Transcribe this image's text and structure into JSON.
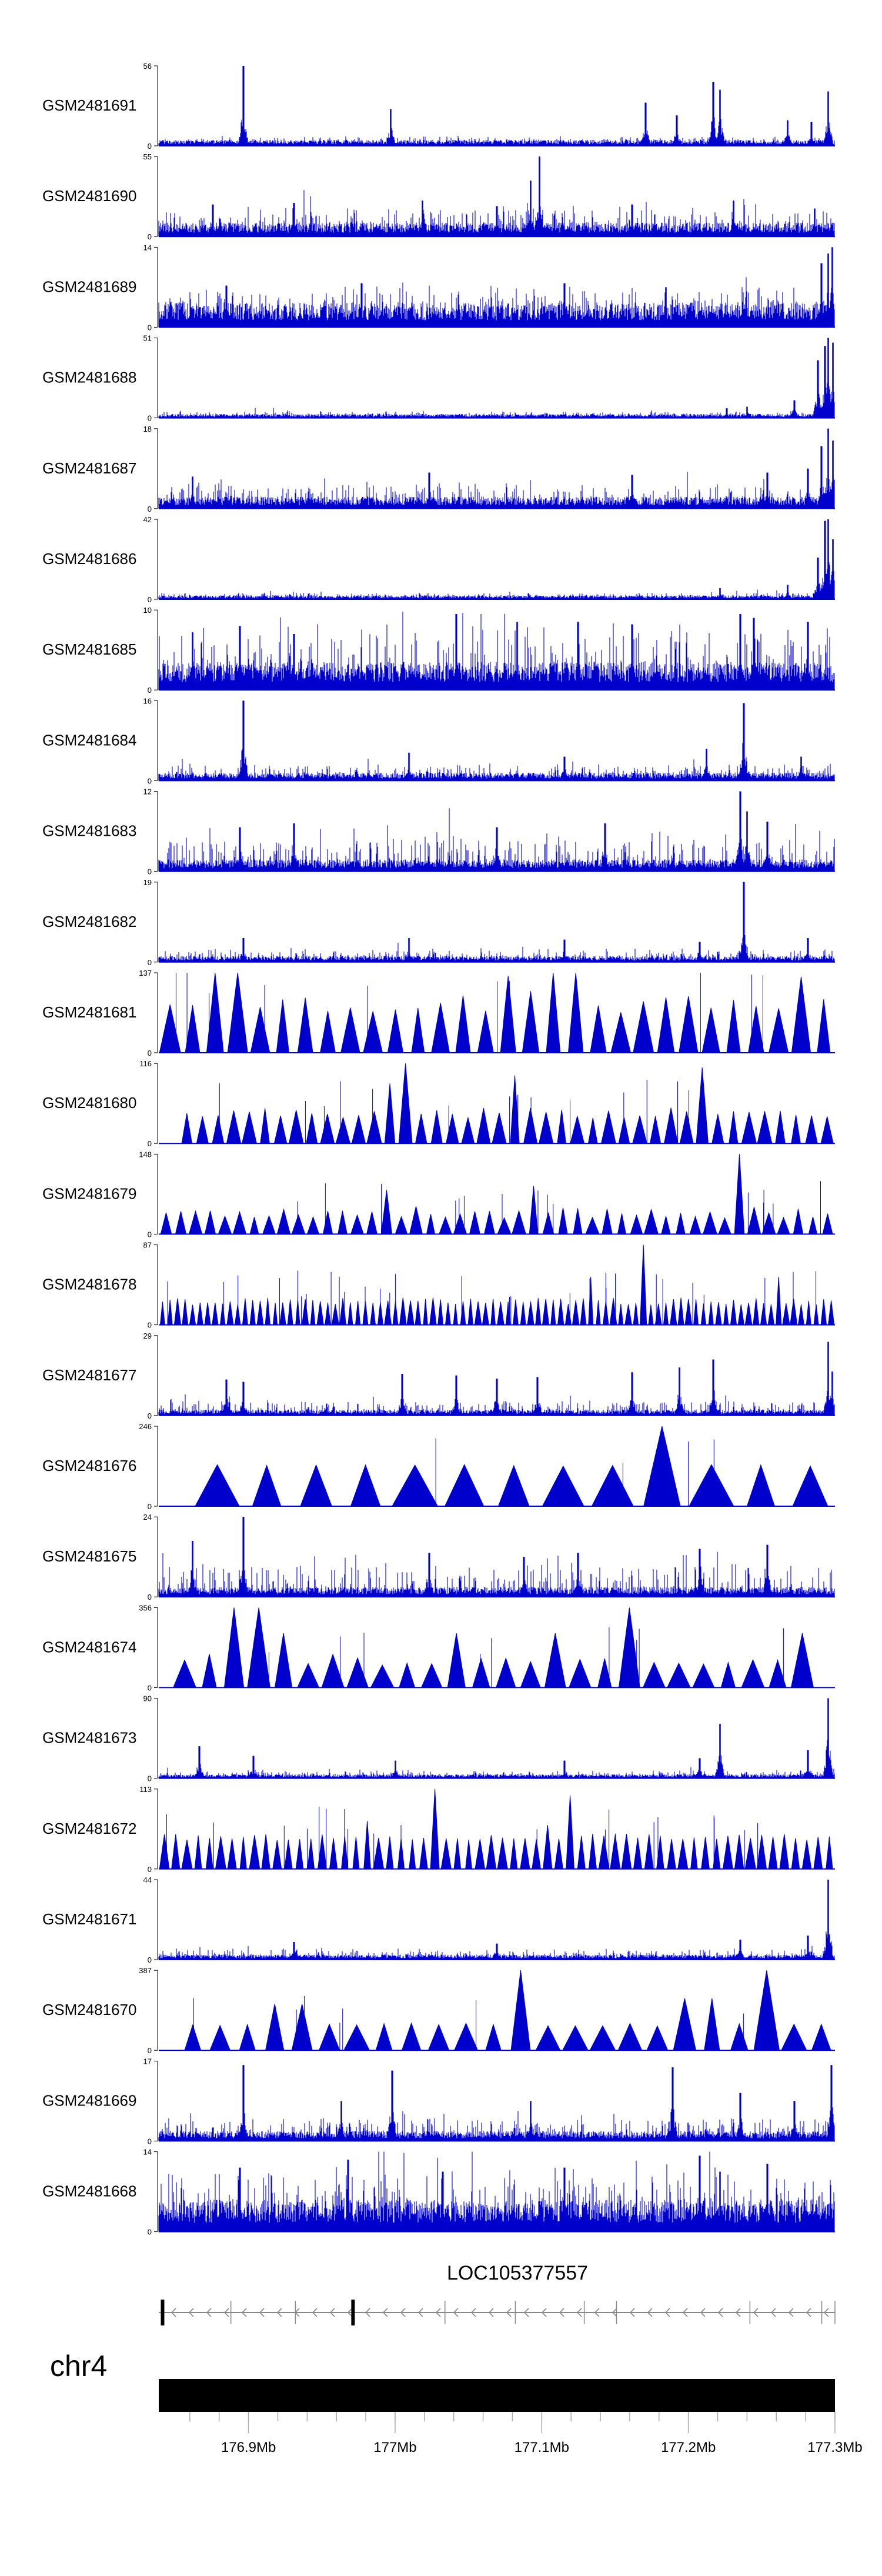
{
  "chart_data": {
    "type": "area",
    "colors": {
      "signal": "#0000cc",
      "axis": "#000000",
      "ideogram": "#000000",
      "gene": "#000000"
    },
    "tracks": [
      {
        "name": "GSM2481691",
        "ymax": 56,
        "style": "dense",
        "base": 0.06,
        "noise": 0.05,
        "peaks": [
          [
            0.125,
            1.0
          ],
          [
            0.343,
            0.46
          ],
          [
            0.72,
            0.54
          ],
          [
            0.766,
            0.38
          ],
          [
            0.82,
            0.8
          ],
          [
            0.83,
            0.7
          ],
          [
            0.93,
            0.32
          ],
          [
            0.965,
            0.3
          ],
          [
            0.99,
            0.68
          ]
        ]
      },
      {
        "name": "GSM2481690",
        "ymax": 55,
        "style": "dense",
        "base": 0.14,
        "noise": 0.2,
        "peaks": [
          [
            0.08,
            0.4
          ],
          [
            0.2,
            0.42
          ],
          [
            0.39,
            0.45
          ],
          [
            0.5,
            0.38
          ],
          [
            0.55,
            0.7
          ],
          [
            0.563,
            1.0
          ],
          [
            0.7,
            0.4
          ],
          [
            0.85,
            0.45
          ],
          [
            0.97,
            0.35
          ]
        ]
      },
      {
        "name": "GSM2481689",
        "ymax": 14,
        "style": "dense",
        "base": 0.25,
        "noise": 0.25,
        "peaks": [
          [
            0.1,
            0.52
          ],
          [
            0.3,
            0.55
          ],
          [
            0.6,
            0.55
          ],
          [
            0.75,
            0.5
          ],
          [
            0.98,
            0.8
          ],
          [
            0.99,
            0.92
          ],
          [
            0.996,
            1.0
          ]
        ]
      },
      {
        "name": "GSM2481688",
        "ymax": 51,
        "style": "dense",
        "base": 0.04,
        "noise": 0.04,
        "peaks": [
          [
            0.84,
            0.12
          ],
          [
            0.87,
            0.14
          ],
          [
            0.94,
            0.22
          ],
          [
            0.975,
            0.72
          ],
          [
            0.985,
            0.9
          ],
          [
            0.99,
            1.0
          ],
          [
            0.997,
            0.94
          ]
        ]
      },
      {
        "name": "GSM2481687",
        "ymax": 18,
        "style": "dense",
        "base": 0.12,
        "noise": 0.18,
        "peaks": [
          [
            0.05,
            0.4
          ],
          [
            0.4,
            0.45
          ],
          [
            0.7,
            0.42
          ],
          [
            0.9,
            0.45
          ],
          [
            0.96,
            0.5
          ],
          [
            0.98,
            0.78
          ],
          [
            0.99,
            1.0
          ],
          [
            0.997,
            0.85
          ]
        ]
      },
      {
        "name": "GSM2481686",
        "ymax": 42,
        "style": "dense",
        "base": 0.04,
        "noise": 0.04,
        "peaks": [
          [
            0.83,
            0.14
          ],
          [
            0.93,
            0.18
          ],
          [
            0.975,
            0.52
          ],
          [
            0.985,
            0.98
          ],
          [
            0.99,
            1.0
          ],
          [
            0.997,
            0.75
          ]
        ]
      },
      {
        "name": "GSM2481685",
        "ymax": 10,
        "style": "dense",
        "base": 0.28,
        "noise": 0.5,
        "peaks": [
          [
            0.05,
            0.72
          ],
          [
            0.12,
            0.8
          ],
          [
            0.2,
            0.7
          ],
          [
            0.44,
            0.95
          ],
          [
            0.53,
            0.85
          ],
          [
            0.62,
            0.85
          ],
          [
            0.7,
            0.82
          ],
          [
            0.86,
            0.95
          ],
          [
            0.88,
            0.9
          ],
          [
            0.96,
            0.85
          ]
        ]
      },
      {
        "name": "GSM2481684",
        "ymax": 16,
        "style": "dense",
        "base": 0.08,
        "noise": 0.12,
        "peaks": [
          [
            0.125,
            1.0
          ],
          [
            0.37,
            0.35
          ],
          [
            0.6,
            0.3
          ],
          [
            0.81,
            0.4
          ],
          [
            0.865,
            0.97
          ],
          [
            0.95,
            0.3
          ]
        ]
      },
      {
        "name": "GSM2481683",
        "ymax": 12,
        "style": "dense",
        "base": 0.12,
        "noise": 0.3,
        "peaks": [
          [
            0.12,
            0.55
          ],
          [
            0.2,
            0.6
          ],
          [
            0.5,
            0.55
          ],
          [
            0.66,
            0.6
          ],
          [
            0.86,
            1.0
          ],
          [
            0.87,
            0.75
          ],
          [
            0.9,
            0.62
          ]
        ]
      },
      {
        "name": "GSM2481682",
        "ymax": 19,
        "style": "dense",
        "base": 0.06,
        "noise": 0.1,
        "peaks": [
          [
            0.125,
            0.3
          ],
          [
            0.37,
            0.3
          ],
          [
            0.6,
            0.28
          ],
          [
            0.865,
            1.0
          ],
          [
            0.8,
            0.25
          ],
          [
            0.96,
            0.3
          ]
        ]
      },
      {
        "name": "GSM2481681",
        "ymax": 137,
        "style": "triangles",
        "start": 0.0,
        "end": 1.0,
        "n": 30,
        "seed": 11,
        "minh": 0.5,
        "maxh": 0.72,
        "peaks": [
          [
            0.1,
            1.0
          ],
          [
            0.52,
            0.96
          ],
          [
            0.56,
            0.77
          ],
          [
            0.6,
            1.0
          ],
          [
            0.63,
            0.93
          ],
          [
            0.96,
            0.95
          ]
        ]
      },
      {
        "name": "GSM2481680",
        "ymax": 116,
        "style": "triangles",
        "start": 0.03,
        "end": 1.0,
        "n": 42,
        "seed": 5,
        "minh": 0.32,
        "maxh": 0.45,
        "peaks": [
          [
            0.36,
            1.0
          ],
          [
            0.35,
            0.75
          ],
          [
            0.52,
            0.85
          ],
          [
            0.53,
            0.62
          ],
          [
            0.8,
            0.95
          ]
        ]
      },
      {
        "name": "GSM2481679",
        "ymax": 148,
        "style": "triangles",
        "start": 0.0,
        "end": 1.0,
        "n": 46,
        "seed": 7,
        "minh": 0.2,
        "maxh": 0.35,
        "peaks": [
          [
            0.33,
            0.55
          ],
          [
            0.55,
            0.6
          ],
          [
            0.86,
            1.0
          ]
        ]
      },
      {
        "name": "GSM2481678",
        "ymax": 87,
        "style": "triangles",
        "start": 0.0,
        "end": 1.0,
        "n": 90,
        "seed": 3,
        "minh": 0.25,
        "maxh": 0.34,
        "peaks": [
          [
            0.72,
            1.0
          ],
          [
            0.64,
            0.6
          ],
          [
            0.92,
            0.6
          ]
        ]
      },
      {
        "name": "GSM2481677",
        "ymax": 29,
        "style": "dense",
        "base": 0.06,
        "noise": 0.12,
        "peaks": [
          [
            0.1,
            0.45
          ],
          [
            0.125,
            0.42
          ],
          [
            0.36,
            0.52
          ],
          [
            0.44,
            0.5
          ],
          [
            0.5,
            0.46
          ],
          [
            0.56,
            0.48
          ],
          [
            0.7,
            0.54
          ],
          [
            0.77,
            0.6
          ],
          [
            0.82,
            0.7
          ],
          [
            0.99,
            0.92
          ],
          [
            0.996,
            0.55
          ]
        ]
      },
      {
        "name": "GSM2481676",
        "ymax": 246,
        "style": "triangles",
        "start": 0.05,
        "end": 1.0,
        "n": 13,
        "seed": 2,
        "minh": 0.5,
        "maxh": 0.52,
        "peaks": [
          [
            0.76,
            1.0
          ],
          [
            0.68,
            0.48
          ],
          [
            0.9,
            0.5
          ]
        ]
      },
      {
        "name": "GSM2481675",
        "ymax": 24,
        "style": "dense",
        "base": 0.1,
        "noise": 0.3,
        "peaks": [
          [
            0.125,
            1.0
          ],
          [
            0.05,
            0.7
          ],
          [
            0.4,
            0.55
          ],
          [
            0.54,
            0.5
          ],
          [
            0.62,
            0.55
          ],
          [
            0.8,
            0.6
          ],
          [
            0.9,
            0.65
          ]
        ]
      },
      {
        "name": "GSM2481674",
        "ymax": 356,
        "style": "triangles",
        "start": 0.02,
        "end": 0.97,
        "n": 26,
        "seed": 9,
        "minh": 0.28,
        "maxh": 0.42,
        "peaks": [
          [
            0.1,
            0.72
          ],
          [
            0.12,
            0.78
          ],
          [
            0.13,
            1.0
          ],
          [
            0.19,
            0.68
          ],
          [
            0.43,
            0.68
          ],
          [
            0.6,
            0.68
          ],
          [
            0.71,
            1.0
          ],
          [
            0.94,
            0.68
          ]
        ]
      },
      {
        "name": "GSM2481673",
        "ymax": 90,
        "style": "dense",
        "base": 0.04,
        "noise": 0.06,
        "peaks": [
          [
            0.06,
            0.4
          ],
          [
            0.14,
            0.28
          ],
          [
            0.35,
            0.22
          ],
          [
            0.6,
            0.22
          ],
          [
            0.8,
            0.25
          ],
          [
            0.83,
            0.68
          ],
          [
            0.96,
            0.35
          ],
          [
            0.99,
            1.0
          ]
        ]
      },
      {
        "name": "GSM2481672",
        "ymax": 113,
        "style": "triangles",
        "start": 0.0,
        "end": 1.0,
        "n": 60,
        "seed": 4,
        "minh": 0.36,
        "maxh": 0.44,
        "peaks": [
          [
            0.41,
            1.0
          ],
          [
            0.61,
            0.92
          ],
          [
            0.31,
            0.6
          ],
          [
            0.57,
            0.55
          ]
        ]
      },
      {
        "name": "GSM2481671",
        "ymax": 44,
        "style": "dense",
        "base": 0.05,
        "noise": 0.08,
        "peaks": [
          [
            0.2,
            0.22
          ],
          [
            0.5,
            0.2
          ],
          [
            0.86,
            0.25
          ],
          [
            0.96,
            0.3
          ],
          [
            0.99,
            1.0
          ]
        ]
      },
      {
        "name": "GSM2481670",
        "ymax": 387,
        "style": "triangles",
        "start": 0.03,
        "end": 1.0,
        "n": 24,
        "seed": 1,
        "minh": 0.3,
        "maxh": 0.34,
        "peaks": [
          [
            0.19,
            0.58
          ],
          [
            0.38,
            0.34
          ],
          [
            0.55,
            1.0
          ],
          [
            0.8,
            0.65
          ],
          [
            0.91,
            1.0
          ]
        ]
      },
      {
        "name": "GSM2481669",
        "ymax": 17,
        "style": "dense",
        "base": 0.1,
        "noise": 0.18,
        "peaks": [
          [
            0.125,
            0.95
          ],
          [
            0.345,
            0.88
          ],
          [
            0.27,
            0.5
          ],
          [
            0.55,
            0.5
          ],
          [
            0.76,
            0.92
          ],
          [
            0.86,
            0.6
          ],
          [
            0.94,
            0.5
          ],
          [
            0.995,
            0.95
          ]
        ]
      },
      {
        "name": "GSM2481668",
        "ymax": 14,
        "style": "dense",
        "base": 0.32,
        "noise": 0.45,
        "peaks": [
          [
            0.12,
            0.8
          ],
          [
            0.28,
            0.9
          ],
          [
            0.42,
            0.75
          ],
          [
            0.6,
            0.8
          ],
          [
            0.8,
            0.95
          ],
          [
            0.83,
            0.75
          ],
          [
            0.9,
            0.85
          ]
        ]
      }
    ],
    "gene": {
      "name": "LOC105377557",
      "strand": "-",
      "exons_mb": [
        176.8414,
        176.9713
      ],
      "marks_mb": [
        176.888,
        176.932,
        177.034,
        177.082,
        177.129,
        177.151,
        177.242,
        177.291
      ]
    },
    "chromosome": {
      "name": "chr4",
      "range_mb": [
        176.8388,
        177.3
      ],
      "major_ticks_mb": [
        176.9,
        177.0,
        177.1,
        177.2,
        177.3
      ],
      "tick_labels": [
        "176.9Mb",
        "177Mb",
        "177.1Mb",
        "177.2Mb",
        "177.3Mb"
      ],
      "minor_tick_step_mb": 0.02,
      "minor_tick_start_mb": 176.86
    },
    "xlabel": "",
    "ylabel": "",
    "grid": false,
    "legend": "none"
  }
}
